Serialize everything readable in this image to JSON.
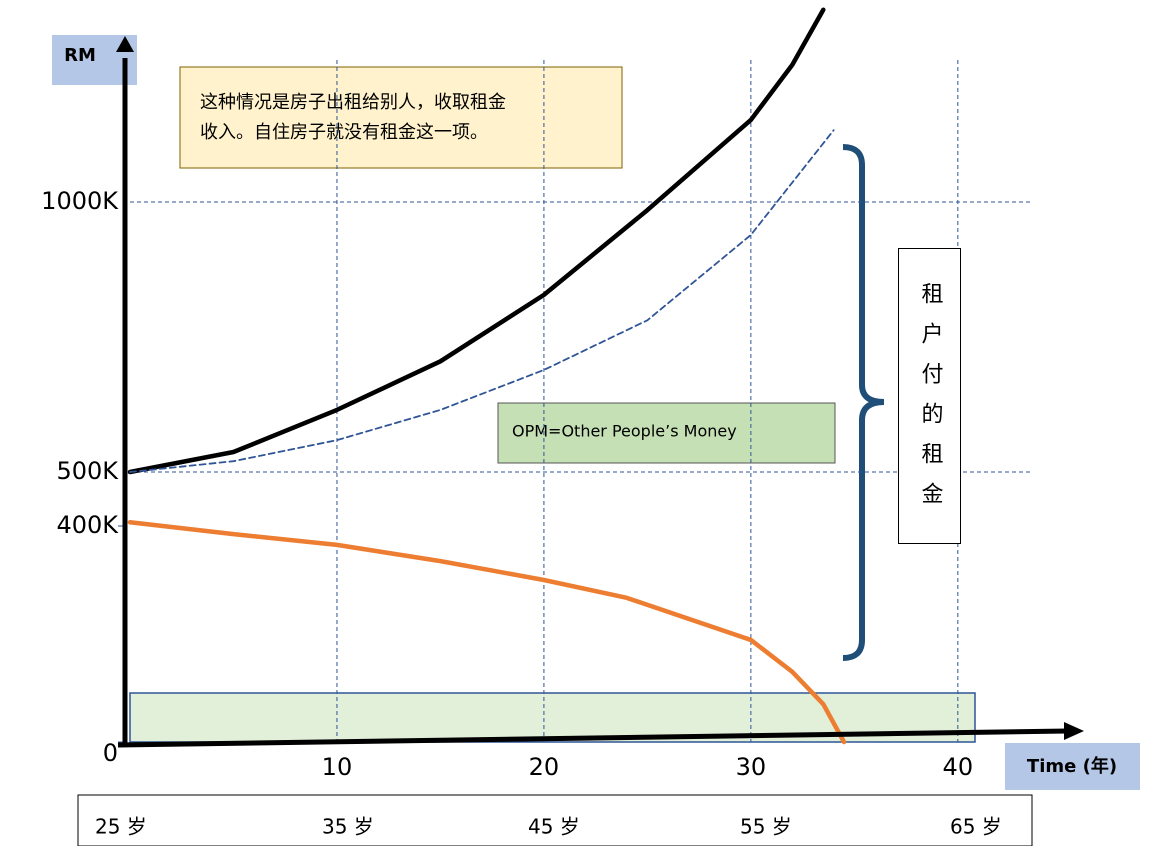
{
  "chart_data": {
    "type": "line",
    "y_axis_label": "RM",
    "x_axis_label": "Time (年)",
    "xlim": [
      0,
      46
    ],
    "xticks": [
      10,
      20,
      30,
      40
    ],
    "ylim": [
      0,
      1300
    ],
    "yticks": [
      0,
      {
        "value": 400,
        "label": "400K"
      },
      {
        "value": 500,
        "label": "500K"
      },
      {
        "value": 1000,
        "label": "1000K"
      }
    ],
    "grid": true,
    "series": [
      {
        "color": "#000000",
        "style": "solid",
        "x": [
          0,
          5,
          10,
          15,
          20,
          25,
          30,
          32,
          33.5
        ],
        "values": [
          500,
          537,
          615,
          705,
          828,
          985,
          1152,
          1254,
          1356
        ]
      },
      {
        "color": "#2f5597",
        "style": "dashed",
        "x": [
          0,
          5,
          10,
          15,
          20,
          25,
          30,
          34
        ],
        "values": [
          500,
          520,
          559,
          615,
          689,
          781,
          939,
          1133
        ]
      },
      {
        "color": "#ed7d31",
        "style": "solid",
        "x": [
          0,
          5,
          10,
          15,
          20,
          24,
          30,
          32,
          33.5,
          34.5
        ],
        "values": [
          407,
          385,
          365,
          335,
          300,
          267,
          189,
          130,
          70,
          0
        ]
      }
    ],
    "annotation_lines": [
      "这种情况是房子出租给别人，收取租金",
      "收入。自住房子就没有租金这一项。"
    ],
    "opm_label": "OPM=Other People’s Money",
    "brace_label": "租户付的租金",
    "age_labels": [
      "25 岁",
      "35 岁",
      "45 岁",
      "55 岁",
      "65 岁"
    ]
  }
}
